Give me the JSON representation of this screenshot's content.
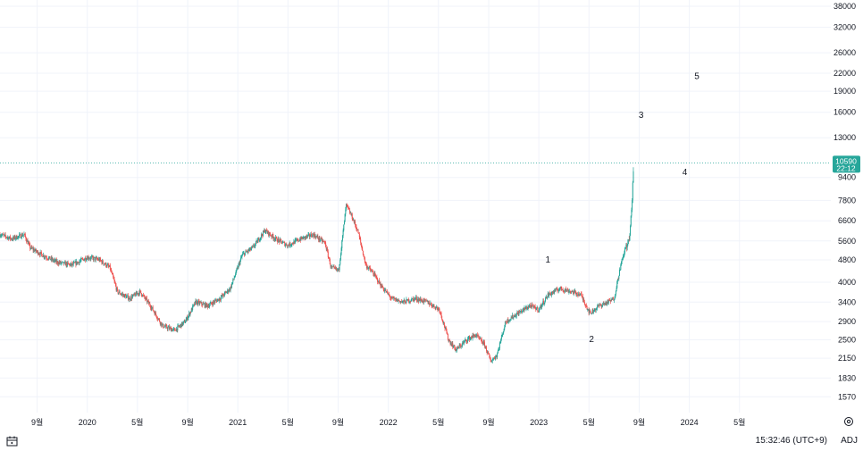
{
  "chart_data": {
    "type": "candlestick",
    "title": "",
    "y_scale": "log",
    "ylim": [
      1380,
      40000
    ],
    "y_ticks": [
      1570,
      1830,
      2150,
      2500,
      2900,
      3400,
      4000,
      4800,
      5600,
      6600,
      7800,
      9400,
      13000,
      16000,
      19000,
      22000,
      26000,
      32000,
      38000
    ],
    "x_ticks": [
      "9월",
      "2020",
      "5월",
      "9월",
      "2021",
      "5월",
      "9월",
      "2022",
      "5월",
      "9월",
      "2023",
      "5월",
      "9월",
      "2024",
      "5월"
    ],
    "x_tick_dates": [
      2019.667,
      2020.0,
      2020.333,
      2020.667,
      2021.0,
      2021.333,
      2021.667,
      2022.0,
      2022.333,
      2022.667,
      2023.0,
      2023.333,
      2023.667,
      2024.0,
      2024.333
    ],
    "xlim": [
      2019.42,
      2024.94
    ],
    "price_path": [
      [
        2019.42,
        5900
      ],
      [
        2019.5,
        5700
      ],
      [
        2019.58,
        5900
      ],
      [
        2019.62,
        5300
      ],
      [
        2019.7,
        5000
      ],
      [
        2019.8,
        4700
      ],
      [
        2019.9,
        4600
      ],
      [
        2020.0,
        4900
      ],
      [
        2020.08,
        4800
      ],
      [
        2020.15,
        4500
      ],
      [
        2020.2,
        3700
      ],
      [
        2020.28,
        3500
      ],
      [
        2020.35,
        3700
      ],
      [
        2020.42,
        3300
      ],
      [
        2020.5,
        2800
      ],
      [
        2020.58,
        2700
      ],
      [
        2020.65,
        2900
      ],
      [
        2020.72,
        3400
      ],
      [
        2020.8,
        3300
      ],
      [
        2020.88,
        3500
      ],
      [
        2020.95,
        3800
      ],
      [
        2021.03,
        5000
      ],
      [
        2021.1,
        5300
      ],
      [
        2021.18,
        6100
      ],
      [
        2021.25,
        5700
      ],
      [
        2021.33,
        5400
      ],
      [
        2021.42,
        5700
      ],
      [
        2021.5,
        5900
      ],
      [
        2021.58,
        5500
      ],
      [
        2021.62,
        4500
      ],
      [
        2021.67,
        4400
      ],
      [
        2021.72,
        7500
      ],
      [
        2021.76,
        6800
      ],
      [
        2021.8,
        6000
      ],
      [
        2021.85,
        4600
      ],
      [
        2021.9,
        4300
      ],
      [
        2021.95,
        3900
      ],
      [
        2022.02,
        3500
      ],
      [
        2022.1,
        3400
      ],
      [
        2022.18,
        3500
      ],
      [
        2022.26,
        3400
      ],
      [
        2022.34,
        3200
      ],
      [
        2022.4,
        2500
      ],
      [
        2022.45,
        2300
      ],
      [
        2022.52,
        2500
      ],
      [
        2022.58,
        2600
      ],
      [
        2022.64,
        2400
      ],
      [
        2022.68,
        2100
      ],
      [
        2022.72,
        2200
      ],
      [
        2022.78,
        2900
      ],
      [
        2022.86,
        3100
      ],
      [
        2022.94,
        3300
      ],
      [
        2023.0,
        3200
      ],
      [
        2023.06,
        3600
      ],
      [
        2023.14,
        3800
      ],
      [
        2023.22,
        3700
      ],
      [
        2023.28,
        3600
      ],
      [
        2023.34,
        3100
      ],
      [
        2023.4,
        3300
      ],
      [
        2023.46,
        3400
      ],
      [
        2023.5,
        3500
      ],
      [
        2023.54,
        4500
      ],
      [
        2023.58,
        5400
      ],
      [
        2023.6,
        5600
      ],
      [
        2023.615,
        7000
      ],
      [
        2023.63,
        10590
      ]
    ],
    "last_price": "10590",
    "last_price_countdown": "22:12",
    "annotations": [
      {
        "label": "1",
        "date": 2023.06,
        "price": 4700
      },
      {
        "label": "2",
        "date": 2023.35,
        "price": 2450
      },
      {
        "label": "3",
        "date": 2023.68,
        "price": 15300
      },
      {
        "label": "4",
        "date": 2023.97,
        "price": 9600
      },
      {
        "label": "5",
        "date": 2024.05,
        "price": 21000
      }
    ],
    "colors": {
      "up": "#26a69a",
      "down": "#ef5350",
      "price_line": "#26a69a",
      "badge_bg": "#26a69a",
      "grid": "#f0f3fa"
    }
  },
  "status_bar": {
    "calendar_icon": "calendar-range-icon",
    "time": "15:32:46 (UTC+9)",
    "adj": "ADJ"
  },
  "settings_icon": "settings-icon"
}
